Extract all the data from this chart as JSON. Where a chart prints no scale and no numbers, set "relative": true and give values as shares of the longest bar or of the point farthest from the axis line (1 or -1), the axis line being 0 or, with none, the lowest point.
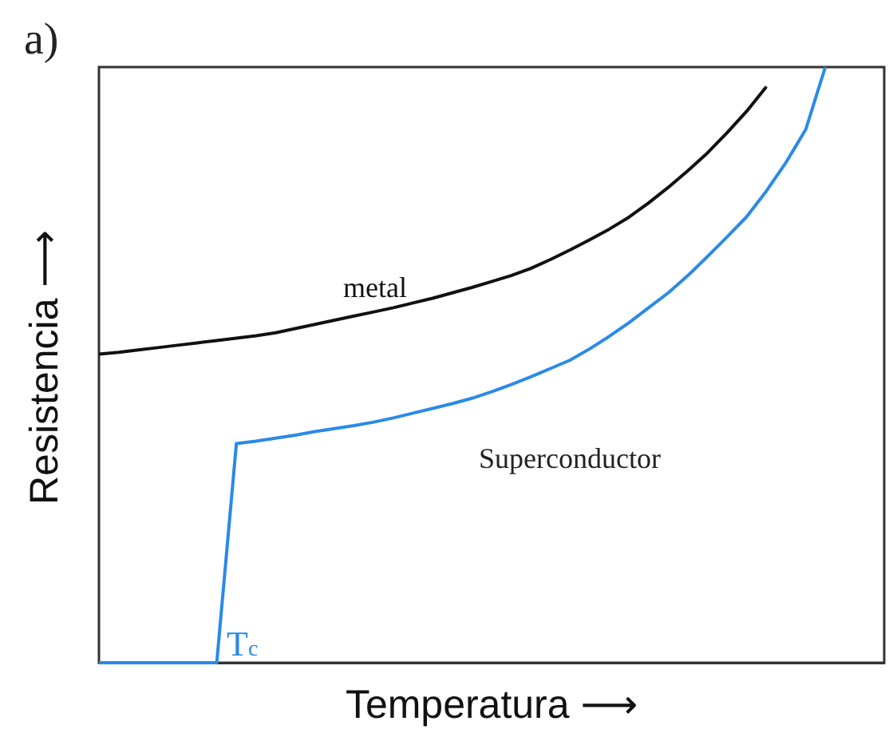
{
  "chart_data": {
    "type": "line",
    "relative": true,
    "title": "a)",
    "xlabel": "Temperatura ⟶",
    "ylabel": "Resistencia ⟶",
    "categories": [
      null,
      null,
      null,
      null,
      null,
      null,
      null,
      null,
      null,
      null,
      null,
      null,
      null,
      null,
      null,
      null,
      null,
      null,
      null,
      null,
      null,
      null,
      null,
      null,
      null,
      null,
      null,
      null,
      null,
      null,
      null,
      null,
      null,
      null,
      null,
      null,
      null,
      null,
      null,
      null,
      null
    ],
    "series": [
      {
        "color": "#111111",
        "values": [
          0.518,
          0.521,
          0.525,
          0.529,
          0.533,
          0.537,
          0.541,
          0.545,
          0.549,
          0.554,
          0.561,
          0.568,
          0.575,
          0.582,
          0.589,
          0.596,
          0.604,
          0.612,
          0.621,
          0.63,
          0.64,
          0.65,
          0.662,
          0.677,
          0.693,
          0.71,
          0.728,
          0.748,
          0.772,
          0.798,
          0.826,
          0.856,
          0.89,
          0.926,
          0.967,
          null,
          null,
          null,
          null,
          null,
          null
        ]
      },
      {
        "color": "#2a8ae8",
        "values": [
          0,
          0,
          0,
          0,
          0,
          0,
          0,
          0.368,
          0.372,
          0.377,
          0.382,
          0.388,
          0.393,
          0.398,
          0.404,
          0.411,
          0.419,
          0.427,
          0.435,
          0.444,
          0.455,
          0.467,
          0.48,
          0.494,
          0.508,
          0.527,
          0.548,
          0.571,
          0.596,
          0.621,
          0.65,
          0.682,
          0.715,
          0.749,
          0.792,
          0.84,
          0.895,
          1,
          null,
          null,
          null
        ]
      }
    ],
    "annotations": [
      "metal",
      "Superconductor",
      "T$_{c}$"
    ],
    "grid": false,
    "marker": "none",
    "line_style": "solid"
  }
}
